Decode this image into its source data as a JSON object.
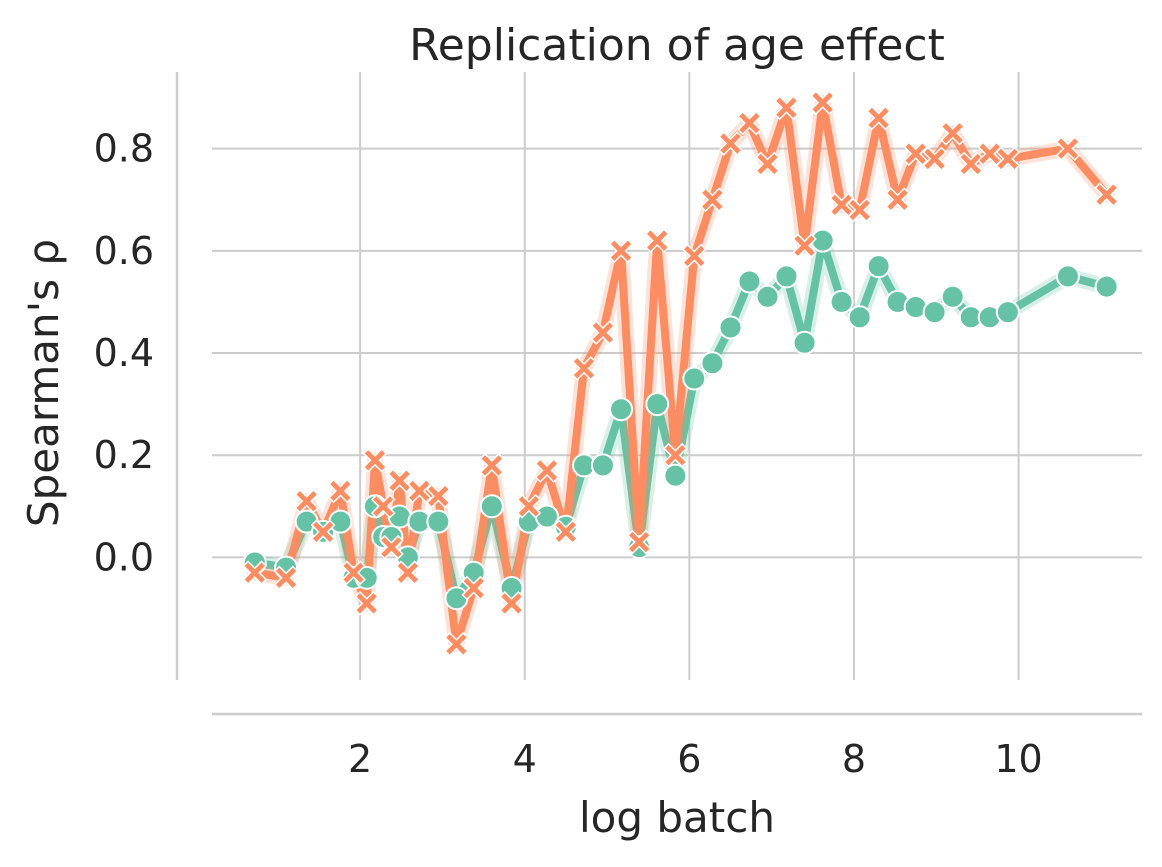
{
  "chart_data": {
    "type": "line",
    "title": "Replication of age effect",
    "xlabel": "log batch",
    "ylabel": "Spearman's ρ",
    "xlim": [
      0.2,
      11.5
    ],
    "ylim": [
      -0.24,
      0.95
    ],
    "xticks": [
      "2",
      "4",
      "6",
      "8",
      "10"
    ],
    "yticks": [
      "0.0",
      "0.2",
      "0.4",
      "0.6",
      "0.8"
    ],
    "grid": true,
    "legend": "none",
    "colors": {
      "series_a": "#66c2a5",
      "series_b": "#fc8d62",
      "grid": "#cccccc",
      "text": "#262626"
    },
    "series": [
      {
        "marker": "circle",
        "points": [
          [
            0.72,
            -0.01
          ],
          [
            1.1,
            -0.02
          ],
          [
            1.35,
            0.07
          ],
          [
            1.55,
            0.05
          ],
          [
            1.76,
            0.07
          ],
          [
            1.92,
            -0.04
          ],
          [
            2.08,
            -0.04
          ],
          [
            2.18,
            0.1
          ],
          [
            2.28,
            0.04
          ],
          [
            2.38,
            0.04
          ],
          [
            2.48,
            0.08
          ],
          [
            2.58,
            0.0
          ],
          [
            2.72,
            0.07
          ],
          [
            2.95,
            0.07
          ],
          [
            3.17,
            -0.08
          ],
          [
            3.38,
            -0.03
          ],
          [
            3.6,
            0.1
          ],
          [
            3.84,
            -0.06
          ],
          [
            4.05,
            0.07
          ],
          [
            4.27,
            0.08
          ],
          [
            4.5,
            0.06
          ],
          [
            4.72,
            0.18
          ],
          [
            4.95,
            0.18
          ],
          [
            5.17,
            0.29
          ],
          [
            5.39,
            0.02
          ],
          [
            5.61,
            0.3
          ],
          [
            5.83,
            0.16
          ],
          [
            6.06,
            0.35
          ],
          [
            6.28,
            0.38
          ],
          [
            6.5,
            0.45
          ],
          [
            6.73,
            0.54
          ],
          [
            6.95,
            0.51
          ],
          [
            7.18,
            0.55
          ],
          [
            7.4,
            0.42
          ],
          [
            7.62,
            0.62
          ],
          [
            7.85,
            0.5
          ],
          [
            8.07,
            0.47
          ],
          [
            8.3,
            0.57
          ],
          [
            8.53,
            0.5
          ],
          [
            8.75,
            0.49
          ],
          [
            8.98,
            0.48
          ],
          [
            9.2,
            0.51
          ],
          [
            9.42,
            0.47
          ],
          [
            9.65,
            0.47
          ],
          [
            9.87,
            0.48
          ],
          [
            10.6,
            0.55
          ],
          [
            11.07,
            0.53
          ]
        ]
      },
      {
        "marker": "x",
        "points": [
          [
            0.72,
            -0.03
          ],
          [
            1.1,
            -0.04
          ],
          [
            1.35,
            0.11
          ],
          [
            1.55,
            0.05
          ],
          [
            1.76,
            0.13
          ],
          [
            1.92,
            -0.03
          ],
          [
            2.08,
            -0.09
          ],
          [
            2.18,
            0.19
          ],
          [
            2.28,
            0.1
          ],
          [
            2.38,
            0.02
          ],
          [
            2.48,
            0.15
          ],
          [
            2.58,
            -0.03
          ],
          [
            2.72,
            0.13
          ],
          [
            2.95,
            0.12
          ],
          [
            3.17,
            -0.17
          ],
          [
            3.38,
            -0.06
          ],
          [
            3.6,
            0.18
          ],
          [
            3.84,
            -0.09
          ],
          [
            4.05,
            0.1
          ],
          [
            4.27,
            0.17
          ],
          [
            4.5,
            0.05
          ],
          [
            4.72,
            0.37
          ],
          [
            4.95,
            0.44
          ],
          [
            5.17,
            0.6
          ],
          [
            5.39,
            0.03
          ],
          [
            5.61,
            0.62
          ],
          [
            5.83,
            0.2
          ],
          [
            6.06,
            0.59
          ],
          [
            6.28,
            0.7
          ],
          [
            6.5,
            0.81
          ],
          [
            6.73,
            0.85
          ],
          [
            6.95,
            0.77
          ],
          [
            7.18,
            0.88
          ],
          [
            7.4,
            0.61
          ],
          [
            7.62,
            0.89
          ],
          [
            7.85,
            0.69
          ],
          [
            8.07,
            0.68
          ],
          [
            8.3,
            0.86
          ],
          [
            8.53,
            0.7
          ],
          [
            8.75,
            0.79
          ],
          [
            8.98,
            0.78
          ],
          [
            9.2,
            0.83
          ],
          [
            9.42,
            0.77
          ],
          [
            9.65,
            0.79
          ],
          [
            9.87,
            0.78
          ],
          [
            10.6,
            0.8
          ],
          [
            11.07,
            0.71
          ]
        ]
      }
    ]
  }
}
